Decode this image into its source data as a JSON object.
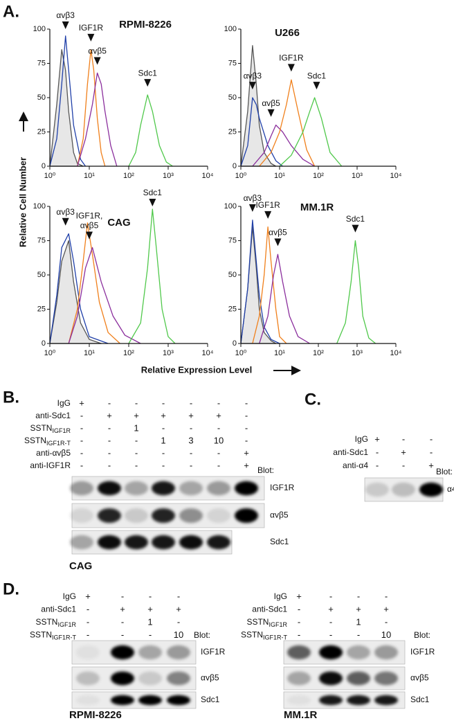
{
  "panel_a": {
    "label": "A.",
    "ylabel": "Relative Cell Number",
    "xlabel": "Relative Expression Level"
  },
  "chart_data": [
    {
      "type": "line",
      "title": "RPMI-8226",
      "xlog": true,
      "xlim": [
        1,
        10000
      ],
      "ylim": [
        0,
        100
      ],
      "xticks": [
        {
          "value": 1,
          "label": "10⁰"
        },
        {
          "value": 10,
          "label": "10¹"
        },
        {
          "value": 100,
          "label": "10²"
        },
        {
          "value": 1000,
          "label": "10³"
        },
        {
          "value": 10000,
          "label": "10⁴"
        }
      ],
      "yticks": [
        0,
        25,
        50,
        75,
        100
      ],
      "series": [
        {
          "color": "#9a9a9a",
          "x": [
            1,
            1.5,
            2,
            2.5,
            3,
            4,
            5,
            7
          ],
          "values": [
            0,
            45,
            85,
            70,
            40,
            10,
            2,
            0
          ]
        },
        {
          "name": "αvβ3",
          "color": "#1f3fa8",
          "x": [
            1,
            1.5,
            2,
            2.5,
            3,
            4,
            6,
            8
          ],
          "values": [
            0,
            20,
            60,
            95,
            70,
            30,
            5,
            0
          ]
        },
        {
          "name": "IGF1R",
          "color": "#f07f1a",
          "x": [
            5,
            7,
            9,
            11,
            13,
            16,
            20,
            25
          ],
          "values": [
            0,
            20,
            60,
            85,
            70,
            35,
            10,
            0
          ]
        },
        {
          "name": "αvβ5",
          "color": "#8a2d9c",
          "x": [
            5,
            8,
            12,
            16,
            20,
            25,
            35,
            50
          ],
          "values": [
            0,
            20,
            45,
            68,
            60,
            40,
            15,
            0
          ]
        },
        {
          "name": "Sdc1",
          "color": "#4fc84a",
          "x": [
            100,
            150,
            200,
            300,
            400,
            600,
            900,
            1300
          ],
          "values": [
            0,
            10,
            30,
            52,
            40,
            15,
            3,
            0
          ]
        }
      ],
      "annotations": [
        {
          "text": "αvβ3",
          "x": 2.5
        },
        {
          "text": "IGF1R",
          "x": 11
        },
        {
          "text": "αvβ5",
          "x": 16
        },
        {
          "text": "Sdc1",
          "x": 300
        }
      ]
    },
    {
      "type": "line",
      "title": "U266",
      "xlog": true,
      "xlim": [
        1,
        10000
      ],
      "ylim": [
        0,
        100
      ],
      "xticks": [
        {
          "value": 1,
          "label": "10⁰"
        },
        {
          "value": 10,
          "label": "10¹"
        },
        {
          "value": 100,
          "label": "10²"
        },
        {
          "value": 1000,
          "label": "10³"
        },
        {
          "value": 10000,
          "label": "10⁴"
        }
      ],
      "yticks": [
        0,
        25,
        50,
        75,
        100
      ],
      "series": [
        {
          "color": "#9a9a9a",
          "x": [
            1,
            1.5,
            2,
            2.5,
            3,
            4,
            6,
            8
          ],
          "values": [
            0,
            40,
            88,
            60,
            30,
            10,
            2,
            0
          ]
        },
        {
          "name": "αvβ3",
          "color": "#1f3fa8",
          "x": [
            1,
            1.5,
            2,
            2.5,
            3,
            5,
            8,
            12
          ],
          "values": [
            0,
            15,
            50,
            45,
            35,
            15,
            4,
            0
          ]
        },
        {
          "name": "αvβ5",
          "color": "#8a2d9c",
          "x": [
            2,
            4,
            6,
            8,
            12,
            20,
            40,
            80
          ],
          "values": [
            0,
            10,
            22,
            30,
            25,
            15,
            5,
            0
          ]
        },
        {
          "name": "IGF1R",
          "color": "#f07f1a",
          "x": [
            3,
            6,
            10,
            15,
            20,
            30,
            50,
            80
          ],
          "values": [
            0,
            10,
            25,
            45,
            63,
            40,
            12,
            0
          ]
        },
        {
          "name": "Sdc1",
          "color": "#4fc84a",
          "x": [
            10,
            20,
            40,
            60,
            80,
            120,
            200,
            400
          ],
          "values": [
            0,
            8,
            25,
            40,
            50,
            35,
            10,
            0
          ]
        }
      ],
      "annotations": [
        {
          "text": "αvβ3",
          "x": 2
        },
        {
          "text": "αvβ5",
          "x": 6
        },
        {
          "text": "IGF1R",
          "x": 20
        },
        {
          "text": "Sdc1",
          "x": 90
        }
      ]
    },
    {
      "type": "line",
      "title": "CAG",
      "xlog": true,
      "xlim": [
        1,
        10000
      ],
      "ylim": [
        0,
        100
      ],
      "xticks": [
        {
          "value": 1,
          "label": "10⁰"
        },
        {
          "value": 10,
          "label": "10¹"
        },
        {
          "value": 100,
          "label": "10²"
        },
        {
          "value": 1000,
          "label": "10³"
        },
        {
          "value": 10000,
          "label": "10⁴"
        }
      ],
      "yticks": [
        0,
        25,
        50,
        75,
        100
      ],
      "series": [
        {
          "color": "#9a9a9a",
          "x": [
            1,
            1.5,
            2,
            3,
            4,
            6,
            10,
            20
          ],
          "values": [
            0,
            30,
            60,
            75,
            45,
            15,
            3,
            0
          ]
        },
        {
          "name": "αvβ3",
          "color": "#1f3fa8",
          "x": [
            1,
            1.5,
            2,
            3,
            4,
            6,
            10,
            30
          ],
          "values": [
            0,
            35,
            70,
            80,
            60,
            25,
            5,
            0
          ]
        },
        {
          "name": "IGF1R",
          "color": "#f07f1a",
          "x": [
            3,
            5,
            7,
            9,
            12,
            18,
            30,
            60
          ],
          "values": [
            0,
            25,
            60,
            88,
            65,
            30,
            8,
            0
          ]
        },
        {
          "name": "αvβ5",
          "color": "#8a2d9c",
          "x": [
            3,
            5,
            8,
            12,
            20,
            40,
            80,
            200
          ],
          "values": [
            0,
            20,
            55,
            70,
            45,
            20,
            6,
            0
          ]
        },
        {
          "name": "Sdc1",
          "color": "#4fc84a",
          "x": [
            100,
            200,
            300,
            400,
            500,
            700,
            1000,
            1500
          ],
          "values": [
            0,
            15,
            55,
            98,
            70,
            25,
            5,
            0
          ]
        }
      ],
      "annotations": [
        {
          "text": "αvβ3",
          "x": 2.5
        },
        {
          "text": [
            "IGF1R,",
            "αvβ5"
          ],
          "x": 10
        },
        {
          "text": "Sdc1",
          "x": 400
        }
      ]
    },
    {
      "type": "line",
      "title": "MM.1R",
      "xlog": true,
      "xlim": [
        1,
        10000
      ],
      "ylim": [
        0,
        100
      ],
      "xticks": [
        {
          "value": 1,
          "label": "10⁰"
        },
        {
          "value": 10,
          "label": "10¹"
        },
        {
          "value": 100,
          "label": "10²"
        },
        {
          "value": 1000,
          "label": "10³"
        },
        {
          "value": 10000,
          "label": "10⁴"
        }
      ],
      "yticks": [
        0,
        25,
        50,
        75,
        100
      ],
      "series": [
        {
          "color": "#9a9a9a",
          "x": [
            1,
            1.5,
            2,
            2.5,
            3,
            4,
            6,
            8
          ],
          "values": [
            0,
            40,
            85,
            55,
            25,
            8,
            2,
            0
          ]
        },
        {
          "name": "αvβ3",
          "color": "#1f3fa8",
          "x": [
            1,
            1.5,
            2,
            2.5,
            3,
            4,
            6,
            10
          ],
          "values": [
            0,
            40,
            90,
            60,
            35,
            12,
            3,
            0
          ]
        },
        {
          "name": "IGF1R",
          "color": "#f07f1a",
          "x": [
            2,
            3,
            4,
            5,
            6,
            8,
            10,
            15
          ],
          "values": [
            0,
            20,
            50,
            85,
            60,
            25,
            5,
            0
          ]
        },
        {
          "name": "αvβ5",
          "color": "#8a2d9c",
          "x": [
            3,
            5,
            7,
            9,
            12,
            18,
            30,
            60
          ],
          "values": [
            0,
            20,
            50,
            65,
            45,
            20,
            5,
            0
          ]
        },
        {
          "name": "Sdc1",
          "color": "#4fc84a",
          "x": [
            300,
            500,
            700,
            900,
            1100,
            1400,
            2000,
            3000
          ],
          "values": [
            0,
            15,
            45,
            75,
            55,
            20,
            4,
            0
          ]
        }
      ],
      "annotations": [
        {
          "text": "αvβ3",
          "x": 2
        },
        {
          "text": "IGF1R",
          "x": 5
        },
        {
          "text": "αvβ5",
          "x": 9
        },
        {
          "text": "Sdc1",
          "x": 900
        }
      ]
    }
  ],
  "panels": [
    {
      "label": "B.",
      "blots": [
        {
          "rows": [
            {
              "label": "IgG",
              "cells": [
                "+",
                "-",
                "-",
                "-",
                "-",
                "-",
                "-"
              ]
            },
            {
              "label": "anti-Sdc1",
              "cells": [
                "-",
                "+",
                "+",
                "+",
                "+",
                "+",
                "-"
              ]
            },
            {
              "label": "SSTN",
              "sub": "IGF1R",
              "cells": [
                "-",
                "-",
                "1",
                "-",
                "-",
                "-",
                "-"
              ]
            },
            {
              "label": "SSTN",
              "sub": "IGF1R-T",
              "cells": [
                "-",
                "-",
                "-",
                "1",
                "3",
                "10",
                "-"
              ]
            },
            {
              "label": "anti-αvβ5",
              "cells": [
                "-",
                "-",
                "-",
                "-",
                "-",
                "-",
                "+"
              ]
            },
            {
              "label": "anti-IGF1R",
              "cells": [
                "-",
                "-",
                "-",
                "-",
                "-",
                "-",
                "+"
              ]
            }
          ],
          "blot_header": "Blot:",
          "blot_labels": [
            "IGF1R",
            "αvβ5",
            "Sdc1"
          ],
          "cell_line": "CAG"
        }
      ]
    },
    {
      "label": "C.",
      "blots": [
        {
          "rows": [
            {
              "label": "IgG",
              "cells": [
                "+",
                "-",
                "-"
              ]
            },
            {
              "label": "anti-Sdc1",
              "cells": [
                "-",
                "+",
                "-"
              ]
            },
            {
              "label": "anti-α4",
              "cells": [
                "-",
                "-",
                "+"
              ]
            }
          ],
          "blot_header": "Blot:",
          "blot_labels": [
            "α4"
          ]
        }
      ]
    },
    {
      "label": "D.",
      "blots": [
        {
          "rows": [
            {
              "label": "IgG",
              "cells": [
                "+",
                "-",
                "-",
                "-"
              ]
            },
            {
              "label": "anti-Sdc1",
              "cells": [
                "-",
                "+",
                "+",
                "+"
              ]
            },
            {
              "label": "SSTN",
              "sub": "IGF1R",
              "cells": [
                "-",
                "-",
                "1",
                "-"
              ]
            },
            {
              "label": "SSTN",
              "sub": "IGF1R-T",
              "cells": [
                "-",
                "-",
                "-",
                "10"
              ]
            }
          ],
          "blot_header": "Blot:",
          "blot_labels": [
            "IGF1R",
            "αvβ5",
            "Sdc1"
          ],
          "cell_line": "RPMI-8226"
        },
        {
          "rows": [
            {
              "label": "IgG",
              "cells": [
                "+",
                "-",
                "-",
                "-"
              ]
            },
            {
              "label": "anti-Sdc1",
              "cells": [
                "-",
                "+",
                "+",
                "+"
              ]
            },
            {
              "label": "SSTN",
              "sub": "IGF1R",
              "cells": [
                "-",
                "-",
                "1",
                "-"
              ]
            },
            {
              "label": "SSTN",
              "sub": "IGF1R-T",
              "cells": [
                "-",
                "-",
                "-",
                "10"
              ]
            }
          ],
          "blot_header": "Blot:",
          "blot_labels": [
            "IGF1R",
            "αvβ5",
            "Sdc1"
          ],
          "cell_line": "MM.1R"
        }
      ]
    }
  ]
}
